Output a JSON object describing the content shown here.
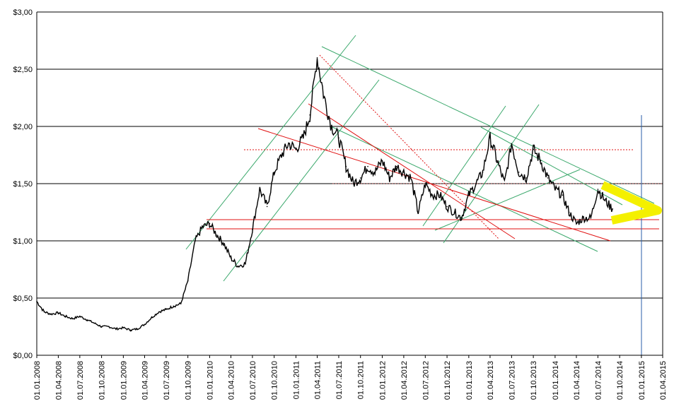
{
  "chart_data": {
    "type": "line",
    "title": "",
    "xlabel": "",
    "ylabel": "",
    "y_tick_labels": [
      "$0,00",
      "$0,50",
      "$1,00",
      "$1,50",
      "$2,00",
      "$2,50",
      "$3,00"
    ],
    "y_ticks": [
      0,
      0.5,
      1.0,
      1.5,
      2.0,
      2.5,
      3.0
    ],
    "ylim": [
      0,
      3.0
    ],
    "x_tick_labels": [
      "01.01.2008",
      "01.04.2008",
      "01.07.2008",
      "01.10.2008",
      "01.01.2009",
      "01.04.2009",
      "01.07.2009",
      "01.10.2009",
      "01.01.2010",
      "01.04.2010",
      "01.07.2010",
      "01.10.2010",
      "01.01.2011",
      "01.04.2011",
      "01.07.2011",
      "01.10.2011",
      "01.01.2012",
      "01.04.2012",
      "01.07.2012",
      "01.10.2012",
      "01.01.2013",
      "01.04.2013",
      "01.07.2013",
      "01.10.2013",
      "01.01.2014",
      "01.04.2014",
      "01.07.2014",
      "01.10.2014",
      "01.01.2015",
      "01.04.2015"
    ],
    "xlim": [
      "01.01.2008",
      "01.04.2015"
    ],
    "grid": "horizontal",
    "legend": "none",
    "series": [
      {
        "color": "#000000",
        "x": [
          "01.01.2008",
          "01.02.2008",
          "01.03.2008",
          "01.04.2008",
          "01.05.2008",
          "01.06.2008",
          "01.07.2008",
          "01.08.2008",
          "01.09.2008",
          "01.10.2008",
          "01.11.2008",
          "01.12.2008",
          "01.01.2009",
          "01.02.2009",
          "01.03.2009",
          "01.04.2009",
          "01.05.2009",
          "01.06.2009",
          "01.07.2009",
          "01.08.2009",
          "01.09.2009",
          "01.10.2009",
          "01.11.2009",
          "01.12.2009",
          "01.01.2010",
          "01.02.2010",
          "01.03.2010",
          "01.04.2010",
          "01.05.2010",
          "01.06.2010",
          "01.07.2010",
          "01.08.2010",
          "01.09.2010",
          "01.10.2010",
          "01.11.2010",
          "01.12.2010",
          "01.01.2011",
          "01.02.2011",
          "01.03.2011",
          "01.04.2011",
          "01.05.2011",
          "01.06.2011",
          "01.07.2011",
          "01.08.2011",
          "01.09.2011",
          "01.10.2011",
          "01.11.2011",
          "01.12.2011",
          "01.01.2012",
          "01.02.2012",
          "01.03.2012",
          "01.04.2012",
          "01.05.2012",
          "01.06.2012",
          "01.07.2012",
          "01.08.2012",
          "01.09.2012",
          "01.10.2012",
          "01.11.2012",
          "01.12.2012",
          "01.01.2013",
          "01.02.2013",
          "01.03.2013",
          "01.04.2013",
          "01.05.2013",
          "01.06.2013",
          "01.07.2013",
          "01.08.2013",
          "01.09.2013",
          "01.10.2013",
          "01.11.2013",
          "01.12.2013",
          "01.01.2014",
          "01.02.2014",
          "01.03.2014",
          "01.04.2014",
          "01.05.2014",
          "01.06.2014",
          "01.07.2014",
          "01.08.2014",
          "01.09.2014"
        ],
        "y": [
          0.47,
          0.38,
          0.36,
          0.37,
          0.34,
          0.32,
          0.34,
          0.31,
          0.28,
          0.25,
          0.25,
          0.23,
          0.24,
          0.22,
          0.23,
          0.27,
          0.33,
          0.38,
          0.4,
          0.43,
          0.45,
          0.65,
          1.0,
          1.12,
          1.15,
          1.05,
          0.98,
          0.85,
          0.78,
          0.8,
          1.1,
          1.45,
          1.3,
          1.6,
          1.75,
          1.85,
          1.8,
          1.9,
          2.1,
          2.6,
          2.25,
          2.0,
          1.9,
          1.65,
          1.5,
          1.55,
          1.65,
          1.6,
          1.7,
          1.55,
          1.65,
          1.6,
          1.55,
          1.25,
          1.5,
          1.4,
          1.4,
          1.3,
          1.25,
          1.2,
          1.4,
          1.5,
          1.6,
          1.9,
          1.7,
          1.5,
          1.85,
          1.6,
          1.55,
          1.8,
          1.7,
          1.55,
          1.45,
          1.4,
          1.25,
          1.15,
          1.2,
          1.2,
          1.45,
          1.35,
          1.28
        ]
      }
    ]
  }
}
